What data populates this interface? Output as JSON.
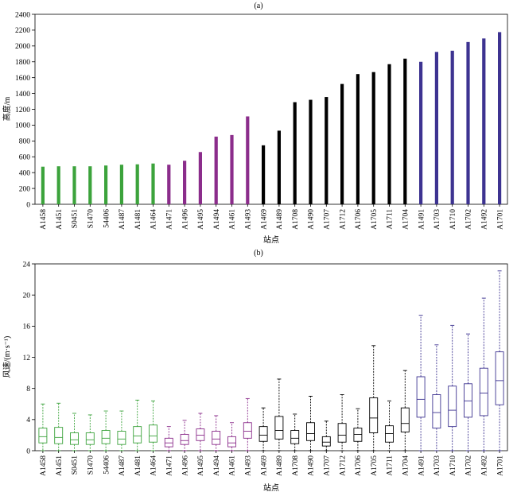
{
  "chart_data": [
    {
      "type": "bar",
      "panel_label": "(a)",
      "xlabel": "站点",
      "ylabel": "高度/m",
      "ylim": [
        0,
        2400
      ],
      "yticks": [
        0,
        200,
        400,
        600,
        800,
        1000,
        1200,
        1400,
        1600,
        1800,
        2000,
        2200,
        2400
      ],
      "categories": [
        "A1458",
        "A1451",
        "S0451",
        "S1470",
        "54406",
        "A1487",
        "A1481",
        "A1464",
        "A1471",
        "A1496",
        "A1495",
        "A1494",
        "A1461",
        "A1493",
        "A1469",
        "A1489",
        "A1708",
        "A1490",
        "A1707",
        "A1712",
        "A1706",
        "A1705",
        "A1711",
        "A1704",
        "A1491",
        "A1703",
        "A1710",
        "A1702",
        "A1492",
        "A1701"
      ],
      "values": [
        475,
        480,
        480,
        480,
        490,
        500,
        505,
        515,
        500,
        550,
        660,
        855,
        875,
        1110,
        745,
        930,
        1290,
        1320,
        1355,
        1520,
        1645,
        1670,
        1770,
        1840,
        1800,
        1925,
        1940,
        2050,
        2095,
        2175
      ],
      "groups": [
        {
          "color": "#3ca33c",
          "count": 8
        },
        {
          "color": "#8b2d8b",
          "count": 6
        },
        {
          "color": "#000000",
          "count": 10
        },
        {
          "color": "#3d3391",
          "count": 6
        }
      ]
    },
    {
      "type": "box",
      "panel_label": "(b)",
      "xlabel": "站点",
      "ylabel": "风速/(m·s⁻¹)",
      "ylim": [
        0,
        24
      ],
      "yticks": [
        0,
        4,
        8,
        12,
        16,
        20,
        24
      ],
      "categories": [
        "A1458",
        "A1451",
        "S0451",
        "S1470",
        "54406",
        "A1487",
        "A1481",
        "A1464",
        "A1471",
        "A1496",
        "A1495",
        "A1494",
        "A1461",
        "A1493",
        "A1469",
        "A1489",
        "A1708",
        "A1490",
        "A1707",
        "A1712",
        "A1706",
        "A1705",
        "A1711",
        "A1704",
        "A1491",
        "A1703",
        "A1710",
        "A1702",
        "A1492",
        "A1701"
      ],
      "boxes": [
        {
          "min": 0,
          "q1": 1.0,
          "median": 1.8,
          "q3": 2.9,
          "max": 6.0
        },
        {
          "min": 0,
          "q1": 0.9,
          "median": 1.7,
          "q3": 3.0,
          "max": 6.1
        },
        {
          "min": 0,
          "q1": 0.8,
          "median": 1.4,
          "q3": 2.3,
          "max": 4.8
        },
        {
          "min": 0,
          "q1": 0.8,
          "median": 1.4,
          "q3": 2.3,
          "max": 4.6
        },
        {
          "min": 0,
          "q1": 0.9,
          "median": 1.6,
          "q3": 2.6,
          "max": 5.1
        },
        {
          "min": 0,
          "q1": 0.8,
          "median": 1.5,
          "q3": 2.5,
          "max": 5.1
        },
        {
          "min": 0,
          "q1": 1.0,
          "median": 1.9,
          "q3": 3.1,
          "max": 6.5
        },
        {
          "min": 0,
          "q1": 1.1,
          "median": 1.9,
          "q3": 3.3,
          "max": 6.4
        },
        {
          "min": 0,
          "q1": 0.5,
          "median": 1.0,
          "q3": 1.6,
          "max": 3.1
        },
        {
          "min": 0,
          "q1": 0.8,
          "median": 1.3,
          "q3": 2.1,
          "max": 3.9
        },
        {
          "min": 0,
          "q1": 1.3,
          "median": 2.0,
          "q3": 2.8,
          "max": 4.8
        },
        {
          "min": 0,
          "q1": 0.8,
          "median": 1.5,
          "q3": 2.5,
          "max": 4.5
        },
        {
          "min": 0,
          "q1": 0.5,
          "median": 1.0,
          "q3": 1.8,
          "max": 3.6
        },
        {
          "min": 0,
          "q1": 1.6,
          "median": 2.5,
          "q3": 3.6,
          "max": 6.7
        },
        {
          "min": 0,
          "q1": 1.2,
          "median": 2.0,
          "q3": 3.1,
          "max": 5.5
        },
        {
          "min": 0,
          "q1": 1.5,
          "median": 2.6,
          "q3": 4.4,
          "max": 9.2
        },
        {
          "min": 0,
          "q1": 0.9,
          "median": 1.6,
          "q3": 2.6,
          "max": 4.7
        },
        {
          "min": 0,
          "q1": 1.3,
          "median": 2.2,
          "q3": 3.6,
          "max": 7.0
        },
        {
          "min": 0,
          "q1": 0.6,
          "median": 1.1,
          "q3": 1.8,
          "max": 3.8
        },
        {
          "min": 0,
          "q1": 1.1,
          "median": 2.0,
          "q3": 3.5,
          "max": 7.2
        },
        {
          "min": 0,
          "q1": 1.2,
          "median": 2.1,
          "q3": 2.9,
          "max": 5.4
        },
        {
          "min": 0,
          "q1": 2.3,
          "median": 4.2,
          "q3": 6.8,
          "max": 13.5
        },
        {
          "min": 0,
          "q1": 1.1,
          "median": 2.2,
          "q3": 3.2,
          "max": 6.4
        },
        {
          "min": 0,
          "q1": 2.4,
          "median": 3.5,
          "q3": 5.5,
          "max": 10.3
        },
        {
          "min": 0,
          "q1": 4.3,
          "median": 6.6,
          "q3": 9.5,
          "max": 17.4
        },
        {
          "min": 0,
          "q1": 2.9,
          "median": 4.9,
          "q3": 7.2,
          "max": 13.6
        },
        {
          "min": 0,
          "q1": 3.1,
          "median": 5.2,
          "q3": 8.3,
          "max": 16.1
        },
        {
          "min": 0,
          "q1": 4.3,
          "median": 6.4,
          "q3": 8.6,
          "max": 15.0
        },
        {
          "min": 0,
          "q1": 4.5,
          "median": 7.4,
          "q3": 10.6,
          "max": 19.6
        },
        {
          "min": 0,
          "q1": 5.9,
          "median": 9.0,
          "q3": 12.7,
          "max": 23.1
        }
      ],
      "groups": [
        {
          "color": "#3ca33c",
          "count": 8
        },
        {
          "color": "#8b2d8b",
          "count": 6
        },
        {
          "color": "#000000",
          "count": 10
        },
        {
          "color": "#3d3391",
          "count": 6
        }
      ]
    }
  ]
}
